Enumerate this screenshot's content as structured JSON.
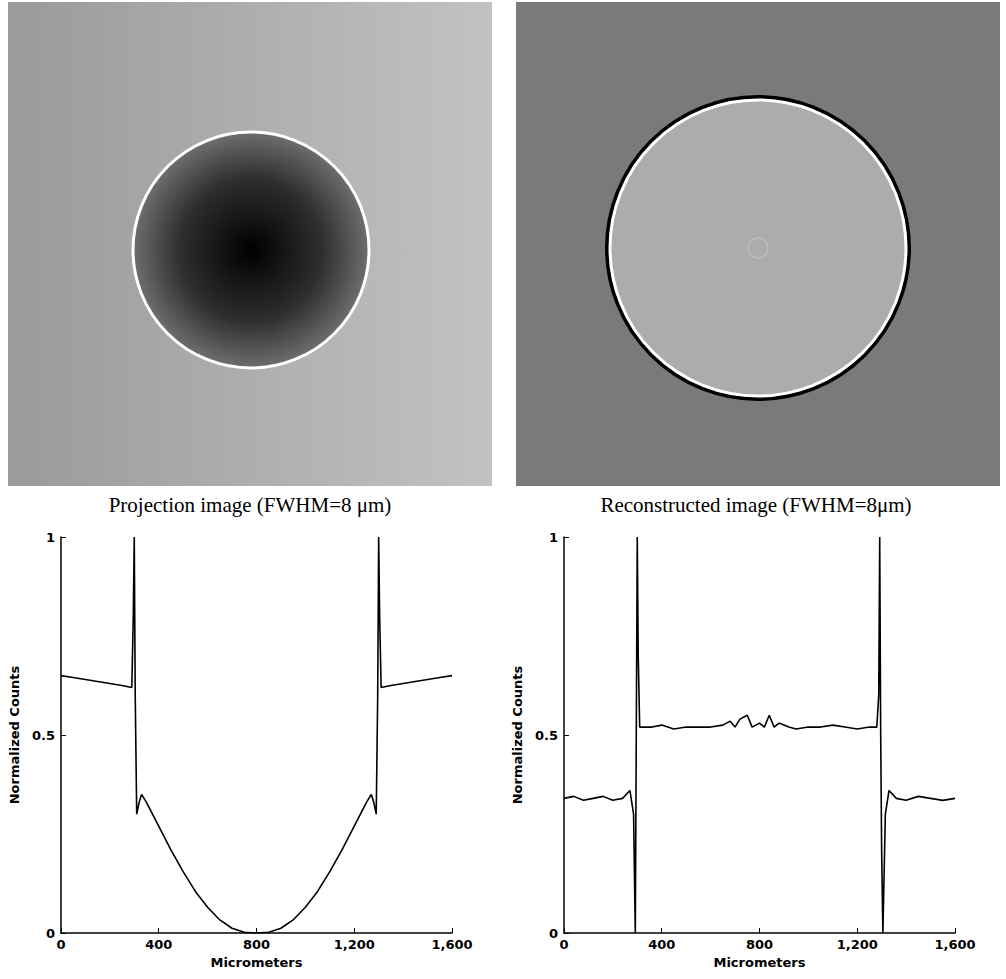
{
  "images": [
    {
      "caption": "Projection image (FWHM=8 μm)"
    },
    {
      "caption": "Reconstructed image (FWHM=8μm)"
    }
  ],
  "chart_data": [
    {
      "type": "line",
      "color": "#000000",
      "xlabel": "Micrometers",
      "ylabel": "Normalized Counts",
      "xlim": [
        0,
        1600
      ],
      "ylim": [
        0,
        1
      ],
      "xticks": [
        0,
        400,
        800,
        1200,
        1600
      ],
      "yticks": [
        0,
        0.5,
        1
      ],
      "x": [
        0,
        50,
        100,
        150,
        200,
        250,
        290,
        296,
        300,
        304,
        310,
        320,
        330,
        350,
        400,
        450,
        500,
        550,
        600,
        650,
        700,
        750,
        800,
        850,
        900,
        950,
        1000,
        1050,
        1100,
        1150,
        1200,
        1250,
        1270,
        1280,
        1290,
        1296,
        1300,
        1304,
        1310,
        1350,
        1400,
        1450,
        1500,
        1550,
        1600
      ],
      "values": [
        0.65,
        0.645,
        0.64,
        0.635,
        0.63,
        0.625,
        0.62,
        0.8,
        1,
        0.6,
        0.3,
        0.33,
        0.35,
        0.33,
        0.27,
        0.21,
        0.155,
        0.105,
        0.065,
        0.033,
        0.012,
        0.002,
        0,
        0.002,
        0.012,
        0.033,
        0.065,
        0.105,
        0.155,
        0.21,
        0.27,
        0.33,
        0.35,
        0.33,
        0.3,
        0.6,
        1,
        0.8,
        0.62,
        0.625,
        0.63,
        0.635,
        0.64,
        0.645,
        0.65
      ]
    },
    {
      "type": "line",
      "color": "#000000",
      "xlabel": "Micrometers",
      "ylabel": "Normalized Counts",
      "xlim": [
        0,
        1600
      ],
      "ylim": [
        0,
        1
      ],
      "xticks": [
        0,
        400,
        800,
        1200,
        1600
      ],
      "yticks": [
        0,
        0.5,
        1
      ],
      "x": [
        0,
        40,
        80,
        120,
        160,
        200,
        240,
        270,
        285,
        292,
        296,
        300,
        304,
        310,
        320,
        360,
        400,
        450,
        500,
        550,
        600,
        650,
        680,
        700,
        720,
        750,
        770,
        800,
        820,
        840,
        860,
        880,
        900,
        920,
        950,
        1000,
        1050,
        1100,
        1150,
        1200,
        1250,
        1280,
        1288,
        1292,
        1296,
        1300,
        1305,
        1315,
        1330,
        1360,
        1400,
        1450,
        1500,
        1550,
        1600
      ],
      "values": [
        0.34,
        0.345,
        0.335,
        0.34,
        0.345,
        0.335,
        0.34,
        0.36,
        0.3,
        0,
        0.5,
        1,
        0.7,
        0.52,
        0.52,
        0.52,
        0.525,
        0.515,
        0.52,
        0.52,
        0.52,
        0.525,
        0.535,
        0.52,
        0.54,
        0.55,
        0.52,
        0.53,
        0.52,
        0.55,
        0.52,
        0.53,
        0.525,
        0.52,
        0.515,
        0.52,
        0.52,
        0.525,
        0.52,
        0.515,
        0.52,
        0.52,
        0.6,
        1,
        0.5,
        0.2,
        0,
        0.3,
        0.36,
        0.34,
        0.335,
        0.345,
        0.34,
        0.335,
        0.34
      ]
    }
  ]
}
